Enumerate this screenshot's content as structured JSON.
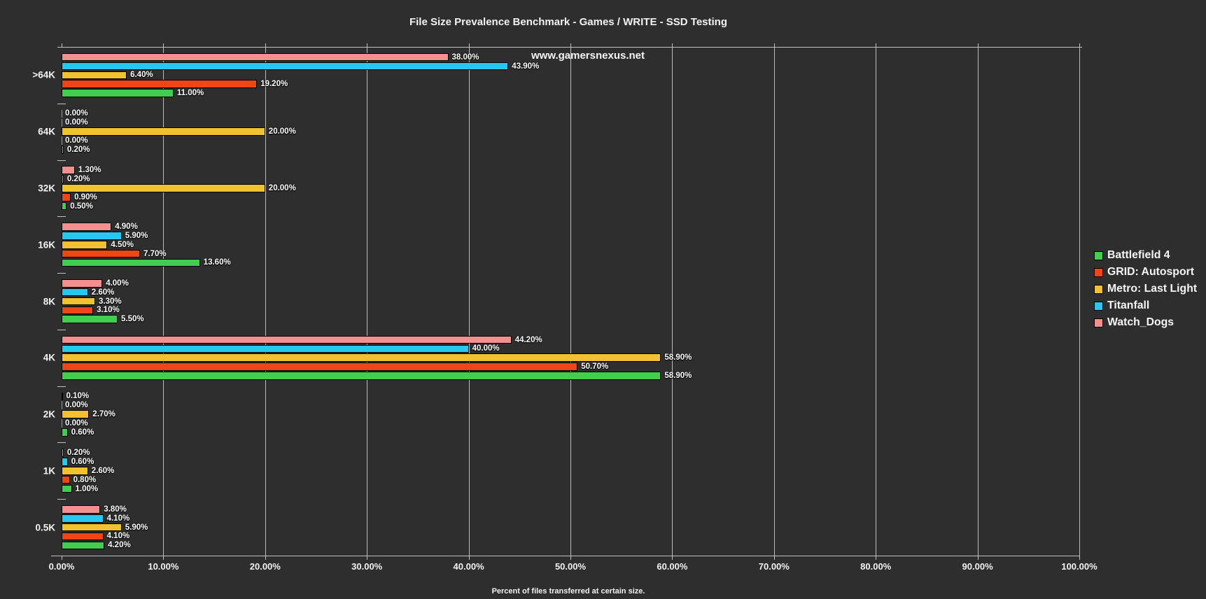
{
  "title": "File Size Prevalence Benchmark - Games / WRITE - SSD Testing",
  "watermark": "www.gamersnexus.net",
  "chart_data": {
    "type": "bar",
    "orientation": "horizontal",
    "title": "File Size Prevalence Benchmark - Games / WRITE - SSD Testing",
    "xlabel": "Percent of files transferred at certain size.",
    "ylabel": "",
    "xlim": [
      0,
      100
    ],
    "grid": "vertical",
    "legend_position": "right",
    "categories": [
      ">64K",
      "64K",
      "32K",
      "16K",
      "8K",
      "4K",
      "2K",
      "1K",
      "0.5K"
    ],
    "x_ticks": [
      "0.00%",
      "10.00%",
      "20.00%",
      "30.00%",
      "40.00%",
      "50.00%",
      "60.00%",
      "70.00%",
      "80.00%",
      "90.00%",
      "100.00%"
    ],
    "series": [
      {
        "name": "Watch_Dogs",
        "color": "#f28f8f",
        "values": [
          38.0,
          0.0,
          1.3,
          4.9,
          4.0,
          44.2,
          0.1,
          0.2,
          3.8
        ]
      },
      {
        "name": "Titanfall",
        "color": "#29c6f0",
        "values": [
          43.9,
          0.0,
          0.2,
          5.9,
          2.6,
          40.0,
          0.0,
          0.6,
          4.1
        ]
      },
      {
        "name": "Metro: Last Light",
        "color": "#efc32f",
        "values": [
          6.4,
          20.0,
          20.0,
          4.5,
          3.3,
          58.9,
          2.7,
          2.6,
          5.9
        ]
      },
      {
        "name": "GRID: Autosport",
        "color": "#ef4517",
        "values": [
          19.2,
          0.0,
          0.9,
          7.7,
          3.1,
          50.7,
          0.0,
          0.8,
          4.1
        ]
      },
      {
        "name": "Battlefield 4",
        "color": "#42cd4e",
        "values": [
          11.0,
          0.2,
          0.5,
          13.6,
          5.5,
          58.9,
          0.6,
          1.0,
          4.2
        ]
      }
    ],
    "legend": [
      "Battlefield 4",
      "GRID: Autosport",
      "Metro: Last Light",
      "Titanfall",
      "Watch_Dogs"
    ],
    "value_label_format": "0.00%"
  },
  "colors": {
    "background": "#2e2e2e",
    "gridline": "#bcbcbc",
    "axis": "#c2c2c2",
    "text": "#f2f2f2"
  }
}
